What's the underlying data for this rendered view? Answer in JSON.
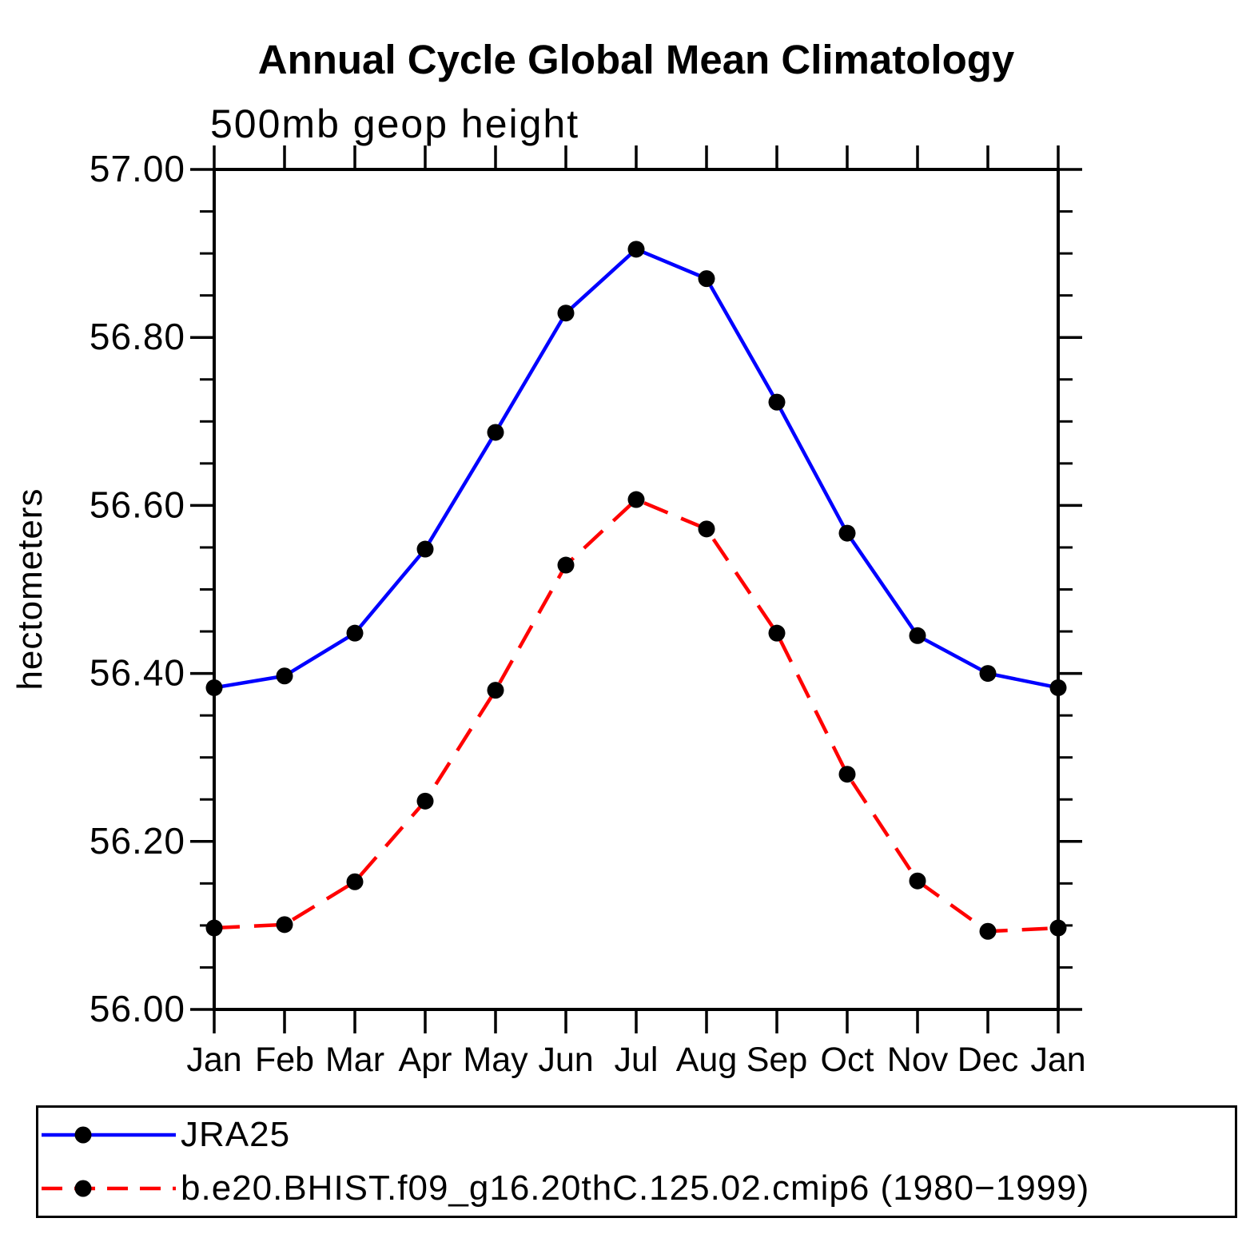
{
  "titles": {
    "main": "Annual Cycle Global Mean Climatology",
    "left_sub": "500mb geop height",
    "y_axis": "hectometers"
  },
  "chart_data": {
    "type": "line",
    "categories": [
      "Jan",
      "Feb",
      "Mar",
      "Apr",
      "May",
      "Jun",
      "Jul",
      "Aug",
      "Sep",
      "Oct",
      "Nov",
      "Dec",
      "Jan"
    ],
    "xlabel": "",
    "ylabel": "hectometers",
    "ylim": [
      56.0,
      57.0
    ],
    "y_minor_step": 0.05,
    "grid": false,
    "legend_position": "bottom",
    "y_major_ticks": [
      {
        "value": 56.0,
        "label": "56.00"
      },
      {
        "value": 56.2,
        "label": "56.20"
      },
      {
        "value": 56.4,
        "label": "56.40"
      },
      {
        "value": 56.6,
        "label": "56.60"
      },
      {
        "value": 56.8,
        "label": "56.80"
      },
      {
        "value": 57.0,
        "label": "57.00"
      }
    ],
    "series": [
      {
        "name": "JRA25",
        "color": "#0000ff",
        "line_style": "solid",
        "marker": "circle",
        "marker_color": "#000000",
        "values": [
          56.383,
          56.397,
          56.448,
          56.548,
          56.687,
          56.829,
          56.905,
          56.87,
          56.723,
          56.567,
          56.445,
          56.4,
          56.383
        ]
      },
      {
        "name": "b.e20.BHIST.f09_g16.20thC.125.02.cmip6 (1980−1999)",
        "color": "#ff0000",
        "line_style": "dashed",
        "marker": "circle",
        "marker_color": "#000000",
        "values": [
          56.097,
          56.101,
          56.152,
          56.248,
          56.38,
          56.529,
          56.607,
          56.572,
          56.448,
          56.28,
          56.153,
          56.093,
          56.097
        ]
      }
    ]
  },
  "legend": {
    "entries": [
      {
        "label": "JRA25"
      },
      {
        "label": "b.e20.BHIST.f09_g16.20thC.125.02.cmip6 (1980−1999)"
      }
    ]
  }
}
